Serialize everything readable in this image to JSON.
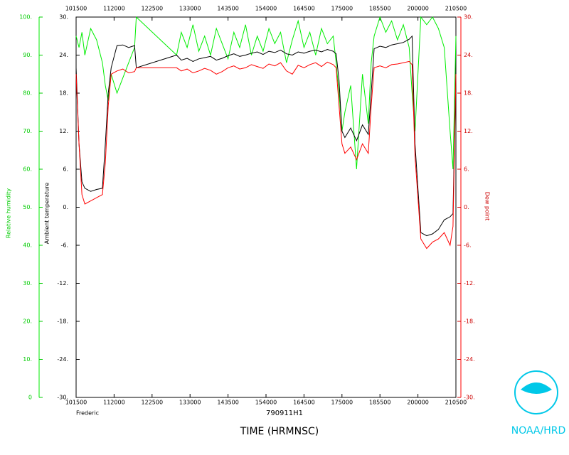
{
  "chart_data": {
    "type": "line",
    "ylabel": "Ambient temperature",
    "y2label": "Dew point",
    "y3label": "Relative humidity",
    "xlabel": "TIME (HRMNSC)",
    "storm": "Frederic",
    "flight": "790911H1",
    "credit": "NOAA/HRD",
    "xlim": [
      "101500",
      "210500"
    ],
    "xticks": [
      "101500",
      "112000",
      "122500",
      "133000",
      "143500",
      "154000",
      "164500",
      "175000",
      "185500",
      "200000",
      "210500"
    ],
    "ylim": [
      -30,
      30
    ],
    "yticks": [
      {
        "value": 30,
        "label": "30."
      },
      {
        "value": 24,
        "label": "24."
      },
      {
        "value": 18,
        "label": "18."
      },
      {
        "value": 12,
        "label": "12."
      },
      {
        "value": 6,
        "label": "6."
      },
      {
        "value": 0,
        "label": "0."
      },
      {
        "value": -6,
        "label": "-6."
      },
      {
        "value": -12,
        "label": "-12."
      },
      {
        "value": -18,
        "label": "-18."
      },
      {
        "value": -24,
        "label": "-24."
      },
      {
        "value": -30,
        "label": "-30."
      }
    ],
    "y2lim": [
      -30,
      30
    ],
    "y2ticks": [
      {
        "value": 30,
        "label": "30."
      },
      {
        "value": 24,
        "label": "24."
      },
      {
        "value": 18,
        "label": "18."
      },
      {
        "value": 12,
        "label": "12."
      },
      {
        "value": 6,
        "label": "6."
      },
      {
        "value": 0,
        "label": "0."
      },
      {
        "value": -6,
        "label": "-6."
      },
      {
        "value": -12,
        "label": "-12."
      },
      {
        "value": -18,
        "label": "-18."
      },
      {
        "value": -24,
        "label": "-24."
      },
      {
        "value": -30,
        "label": "-30."
      }
    ],
    "y3lim": [
      0,
      100
    ],
    "y3ticks": [
      {
        "value": 100,
        "label": "100."
      },
      {
        "value": 90,
        "label": "90."
      },
      {
        "value": 80,
        "label": "80."
      },
      {
        "value": 70,
        "label": "70."
      },
      {
        "value": 60,
        "label": "60."
      },
      {
        "value": 50,
        "label": "50."
      },
      {
        "value": 40,
        "label": "40."
      },
      {
        "value": 30,
        "label": "30."
      },
      {
        "value": 20,
        "label": "20."
      },
      {
        "value": 10,
        "label": "10."
      },
      0
    ],
    "x": [
      "101500",
      "102000",
      "102500",
      "103000",
      "104000",
      "105000",
      "110000",
      "110500",
      "111000",
      "111500",
      "112500",
      "113500",
      "114500",
      "115500",
      "115800",
      "130700",
      "131500",
      "132500",
      "133500",
      "134500",
      "135500",
      "140500",
      "141500",
      "142500",
      "143500",
      "144500",
      "145500",
      "150500",
      "151500",
      "152500",
      "153500",
      "154500",
      "155500",
      "160500",
      "161500",
      "162500",
      "163500",
      "164500",
      "165500",
      "170500",
      "171500",
      "172500",
      "173500",
      "174000",
      "174500",
      "175000",
      "175500",
      "180500",
      "181500",
      "182500",
      "183500",
      "184000",
      "184500",
      "185500",
      "190500",
      "191500",
      "192500",
      "193500",
      "194500",
      "195000",
      "195500",
      "200500",
      "201500",
      "202500",
      "203500",
      "204500",
      "205500",
      "210000",
      "210500"
    ],
    "series": [
      {
        "name": "Relative humidity",
        "color": "#00ee00",
        "axis": "y3",
        "values": [
          95,
          92,
          96,
          90,
          97,
          94,
          88,
          82,
          78,
          85,
          80,
          84,
          88,
          92,
          100,
          90,
          96,
          92,
          98,
          91,
          95,
          90,
          97,
          93,
          89,
          96,
          92,
          98,
          90,
          95,
          91,
          97,
          93,
          96,
          88,
          94,
          99,
          92,
          96,
          90,
          97,
          93,
          95,
          88,
          80,
          70,
          75,
          82,
          60,
          85,
          72,
          88,
          95,
          100,
          96,
          99,
          94,
          98,
          92,
          80,
          70,
          100,
          98,
          100,
          97,
          92,
          70,
          60,
          95
        ]
      },
      {
        "name": "Ambient temperature",
        "color": "#000000",
        "axis": "y",
        "values": [
          22,
          10,
          4,
          3,
          2.5,
          2.8,
          3,
          10,
          18,
          22,
          25.5,
          25.6,
          25.2,
          25.5,
          22,
          24,
          23.2,
          23.5,
          23,
          23.4,
          23.6,
          23.8,
          23.2,
          23.5,
          23.9,
          24.2,
          23.8,
          24,
          24.3,
          24.5,
          24.1,
          24.6,
          24.4,
          24.8,
          24.2,
          24,
          24.5,
          24.3,
          24.6,
          24.8,
          24.5,
          24.9,
          24.6,
          24.2,
          20,
          12,
          11,
          12.5,
          10.5,
          13,
          11.5,
          18,
          25,
          25.4,
          25.2,
          25.6,
          25.8,
          26,
          26.5,
          27,
          10,
          -4,
          -4.5,
          -4.2,
          -3.5,
          -2,
          -1.5,
          -1,
          22
        ]
      },
      {
        "name": "Dew point",
        "color": "#ff0000",
        "axis": "y2",
        "values": [
          21,
          10,
          2,
          0.5,
          1,
          1.5,
          2,
          7,
          16,
          21,
          21.5,
          21.8,
          21.2,
          21.4,
          22,
          22,
          21.5,
          21.8,
          21.2,
          21.5,
          21.9,
          21.6,
          21,
          21.4,
          22,
          22.3,
          21.8,
          22,
          22.5,
          22.2,
          21.9,
          22.6,
          22.3,
          22.8,
          21.5,
          21,
          22.4,
          22,
          22.5,
          22.8,
          22.2,
          22.9,
          22.5,
          22,
          16,
          10,
          8.5,
          9.5,
          7.5,
          10,
          8.5,
          16,
          22,
          22.3,
          22,
          22.5,
          22.6,
          22.8,
          23,
          22.5,
          8,
          -5,
          -6.5,
          -5.5,
          -5,
          -4,
          -6,
          -3,
          21
        ]
      }
    ]
  }
}
